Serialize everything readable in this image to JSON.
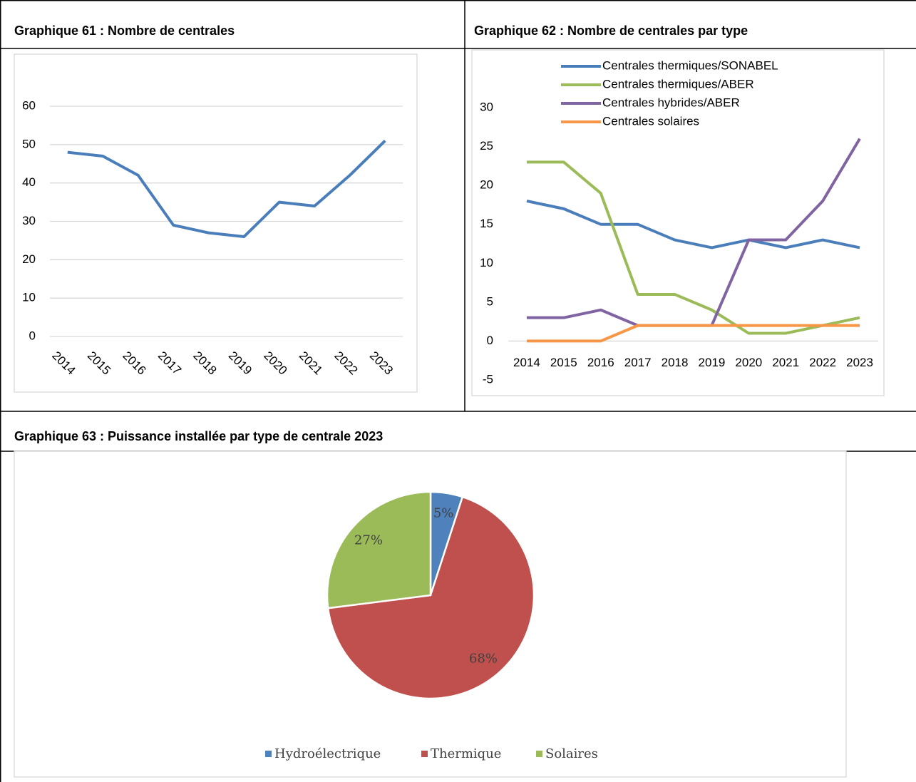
{
  "chart_data": [
    {
      "type": "line",
      "title": "Graphique 61 : Nombre de centrales",
      "categories": [
        "2014",
        "2015",
        "2016",
        "2017",
        "2018",
        "2019",
        "2020",
        "2021",
        "2022",
        "2023"
      ],
      "values": [
        48,
        47,
        42,
        29,
        27,
        26,
        35,
        34,
        42,
        51
      ],
      "color": "#4a7ebb",
      "ylim": [
        0,
        60
      ],
      "yticks": [
        0,
        10,
        20,
        30,
        40,
        50,
        60
      ],
      "grid": true
    },
    {
      "type": "line",
      "title": "Graphique 62 : Nombre de centrales par type",
      "categories": [
        "2014",
        "2015",
        "2016",
        "2017",
        "2018",
        "2019",
        "2020",
        "2021",
        "2022",
        "2023"
      ],
      "series": [
        {
          "name": "Centrales thermiques/SONABEL",
          "color": "#4a7ebb",
          "values": [
            18,
            17,
            15,
            15,
            13,
            12,
            13,
            12,
            13,
            12
          ]
        },
        {
          "name": "Centrales thermiques/ABER",
          "color": "#9bbb59",
          "values": [
            23,
            23,
            19,
            6,
            6,
            4,
            1,
            1,
            2,
            3
          ]
        },
        {
          "name": "Centrales hybrides/ABER",
          "color": "#8064a2",
          "values": [
            3,
            3,
            4,
            2,
            2,
            2,
            13,
            13,
            18,
            26
          ]
        },
        {
          "name": "Centrales solaires",
          "color": "#f79646",
          "values": [
            0,
            0,
            0,
            2,
            2,
            2,
            2,
            2,
            2,
            2
          ]
        }
      ],
      "ylim": [
        -5,
        30
      ],
      "yticks": [
        -5,
        0,
        5,
        10,
        15,
        20,
        25,
        30
      ],
      "grid": false,
      "legend": "top"
    },
    {
      "type": "pie",
      "title": "Graphique 63 : Puissance installée par type de centrale 2023",
      "categories": [
        "Hydroélectrique",
        "Thermique",
        "Solaires"
      ],
      "values": [
        5,
        68,
        27
      ],
      "value_labels": [
        "5%",
        "68%",
        "27%"
      ],
      "colors": [
        "#4f81bd",
        "#c0504d",
        "#9bbb59"
      ],
      "legend": "bottom"
    }
  ]
}
